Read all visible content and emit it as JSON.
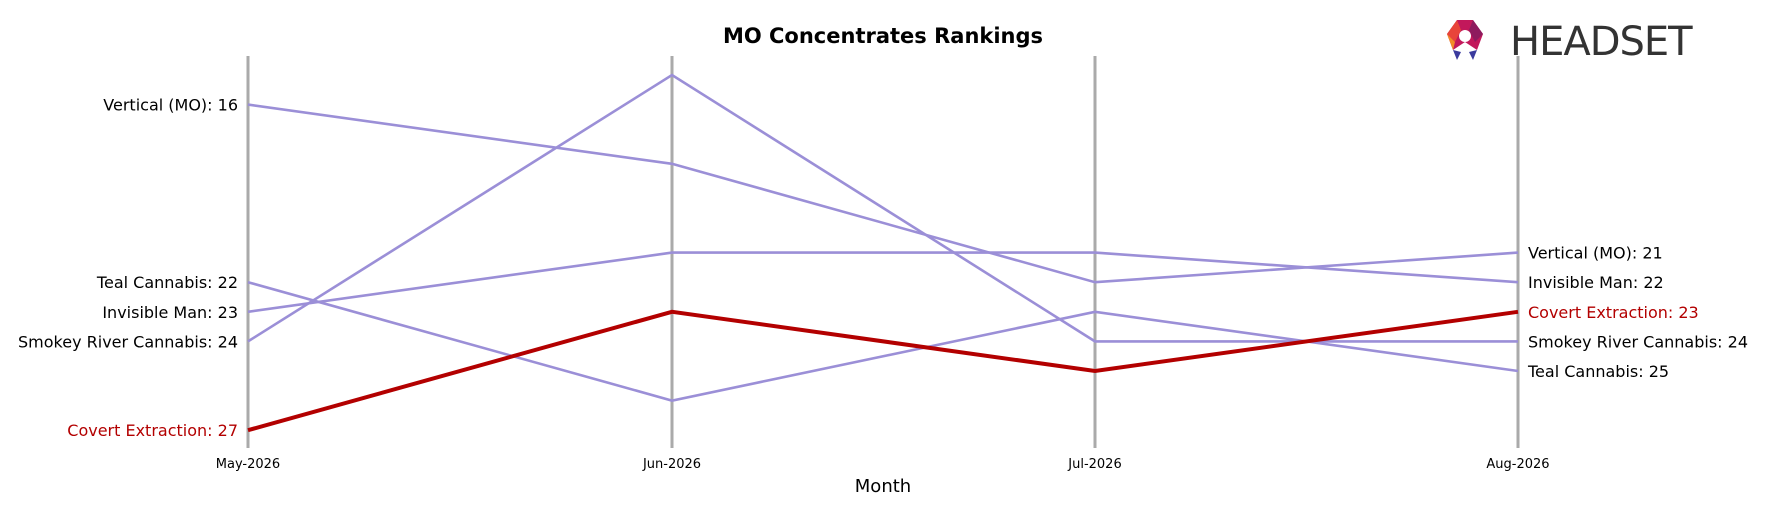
{
  "chart_data": {
    "type": "line",
    "title": "MO Concentrates Rankings",
    "xlabel": "Month",
    "ylabel": "",
    "categories": [
      "May-2026",
      "Jun-2026",
      "Jul-2026",
      "Aug-2026"
    ],
    "y_inverted": true,
    "ylim": [
      15,
      28.5
    ],
    "grid": "vertical lines at each month",
    "highlight_color": "#b30000",
    "line_color": "#9b8fd7",
    "axis_line_color": "#aaaaaa",
    "series": [
      {
        "name": "Vertical (MO)",
        "values": [
          16,
          18,
          22,
          21
        ],
        "highlight": false,
        "start_label": "Vertical (MO): 16",
        "end_label": "Vertical (MO): 21"
      },
      {
        "name": "Invisible Man",
        "values": [
          23,
          21,
          21,
          22
        ],
        "highlight": false,
        "start_label": "Invisible Man: 23",
        "end_label": "Invisible Man: 22"
      },
      {
        "name": "Covert Extraction",
        "values": [
          27,
          23,
          25,
          23
        ],
        "highlight": true,
        "start_label": "Covert Extraction: 27",
        "end_label": "Covert Extraction: 23"
      },
      {
        "name": "Smokey River Cannabis",
        "values": [
          24,
          15,
          24,
          24
        ],
        "highlight": false,
        "start_label": "Smokey River Cannabis: 24",
        "end_label": "Smokey River Cannabis: 24"
      },
      {
        "name": "Teal Cannabis",
        "values": [
          22,
          26,
          23,
          25
        ],
        "highlight": false,
        "start_label": "Teal Cannabis: 22",
        "end_label": "Teal Cannabis: 25"
      }
    ]
  },
  "logo": {
    "text": "HEADSET",
    "icon": "headset-logo-icon"
  }
}
